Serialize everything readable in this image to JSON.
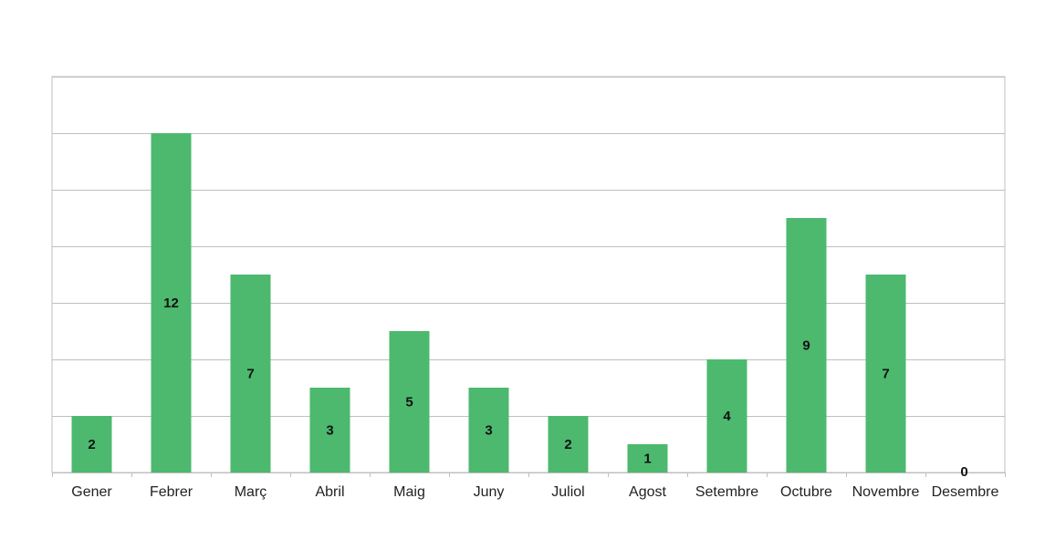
{
  "chart_data": {
    "type": "bar",
    "categories": [
      "Gener",
      "Febrer",
      "Març",
      "Abril",
      "Maig",
      "Juny",
      "Juliol",
      "Agost",
      "Setembre",
      "Octubre",
      "Novembre",
      "Desembre"
    ],
    "values": [
      2,
      12,
      7,
      3,
      5,
      3,
      2,
      1,
      4,
      9,
      7,
      0
    ],
    "ylim": [
      0,
      14
    ],
    "gridlines": [
      0,
      2,
      4,
      6,
      8,
      10,
      12,
      14
    ],
    "grid": true,
    "legend": "none",
    "bar_color": "#4cb96e",
    "data_labels": true
  }
}
